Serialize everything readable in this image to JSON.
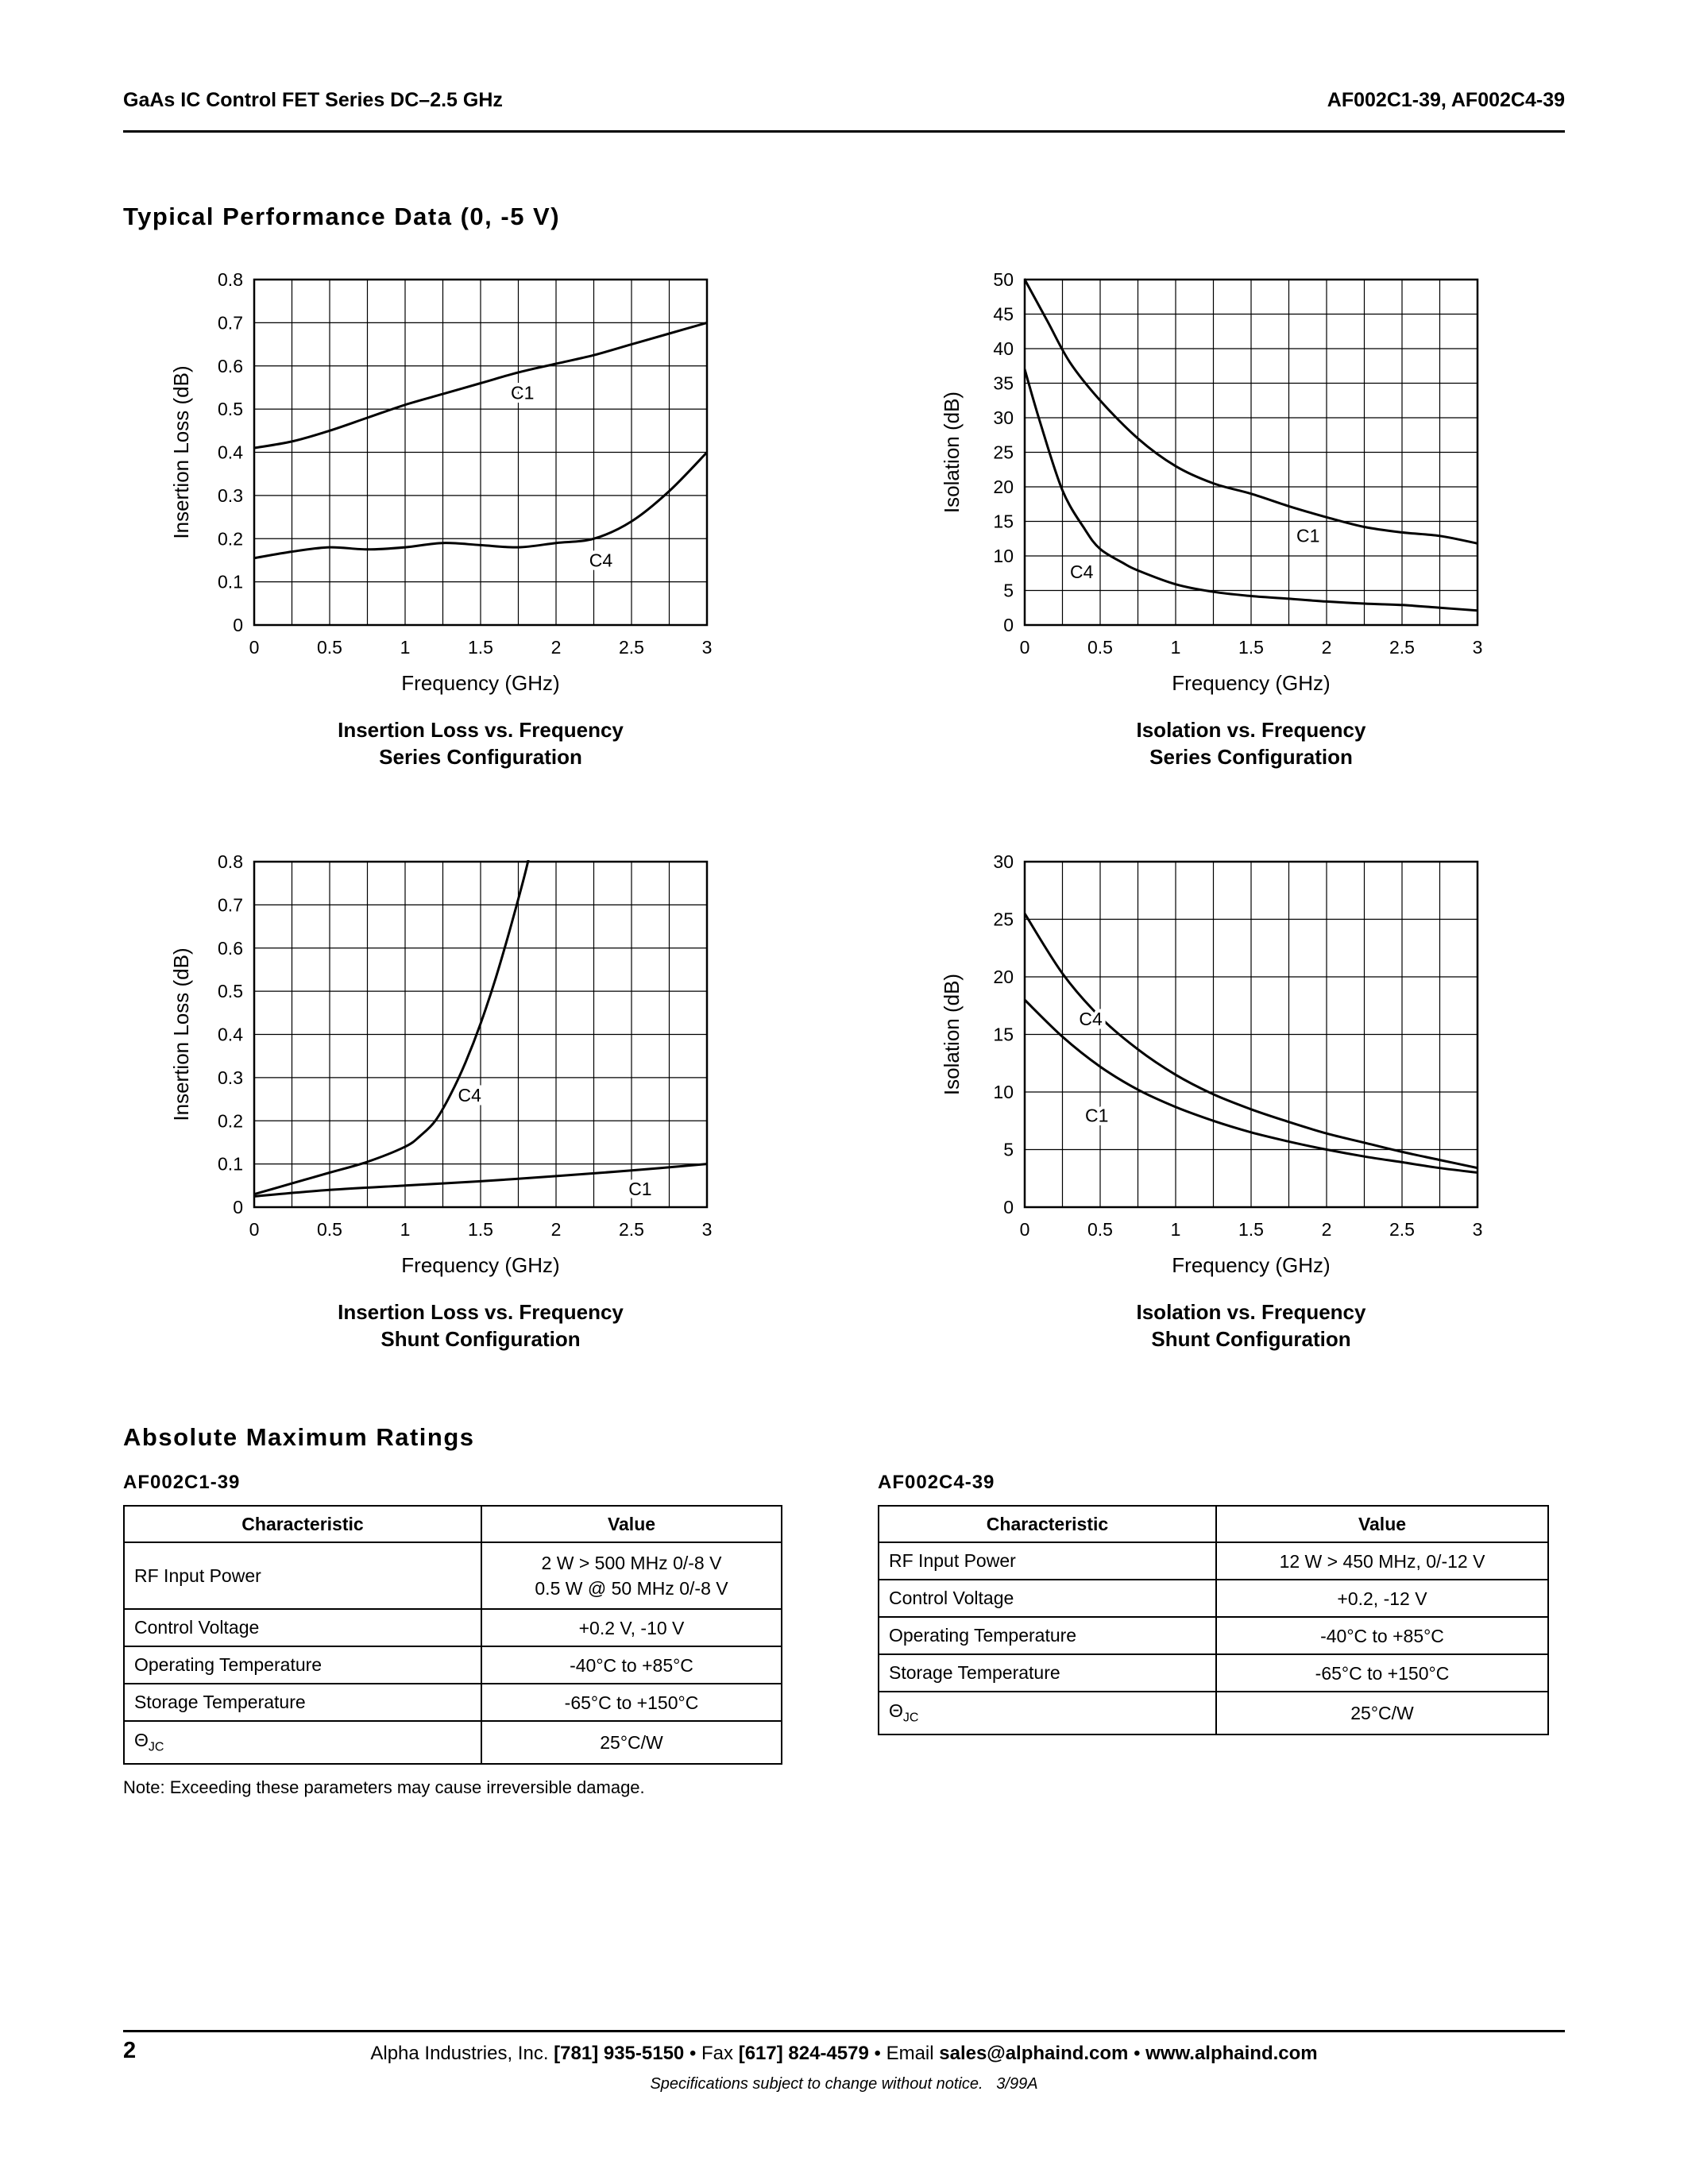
{
  "page": {
    "header_left": "GaAs IC Control FET Series DC–2.5 GHz",
    "header_right": "AF002C1-39, AF002C4-39",
    "page_number": "2"
  },
  "sections": {
    "performance": "Typical Performance Data (0, -5 V)",
    "ratings": "Absolute Maximum Ratings"
  },
  "chart_data": [
    {
      "id": "il-series",
      "type": "line",
      "title_line1": "Insertion Loss vs. Frequency",
      "title_line2": "Series Configuration",
      "xlabel": "Frequency (GHz)",
      "ylabel": "Insertion Loss (dB)",
      "xlim": [
        0,
        3
      ],
      "ylim": [
        0,
        0.8
      ],
      "x_grid_step": 0.25,
      "y_grid_step": 0.1,
      "x_ticks": [
        0,
        0.5,
        1,
        1.5,
        2,
        2.5,
        3
      ],
      "x_tick_labels": [
        "0",
        "0.5",
        "1",
        "1.5",
        "2",
        "2.5",
        "3"
      ],
      "y_ticks": [
        0,
        0.1,
        0.2,
        0.3,
        0.4,
        0.5,
        0.6,
        0.7,
        0.8
      ],
      "y_tick_labels": [
        "0",
        "0.1",
        "0.2",
        "0.3",
        "0.4",
        "0.5",
        "0.6",
        "0.7",
        "0.8"
      ],
      "series": [
        {
          "name": "C1",
          "label_x": 1.7,
          "label_y": 0.523,
          "points": [
            [
              0,
              0.41
            ],
            [
              0.25,
              0.425
            ],
            [
              0.5,
              0.45
            ],
            [
              0.75,
              0.48
            ],
            [
              1,
              0.51
            ],
            [
              1.25,
              0.535
            ],
            [
              1.5,
              0.56
            ],
            [
              1.75,
              0.585
            ],
            [
              2,
              0.605
            ],
            [
              2.25,
              0.625
            ],
            [
              2.5,
              0.65
            ],
            [
              2.75,
              0.675
            ],
            [
              3,
              0.7
            ]
          ]
        },
        {
          "name": "C4",
          "label_x": 2.22,
          "label_y": 0.135,
          "points": [
            [
              0,
              0.155
            ],
            [
              0.25,
              0.17
            ],
            [
              0.5,
              0.18
            ],
            [
              0.75,
              0.175
            ],
            [
              1,
              0.18
            ],
            [
              1.25,
              0.19
            ],
            [
              1.5,
              0.185
            ],
            [
              1.75,
              0.18
            ],
            [
              2,
              0.19
            ],
            [
              2.25,
              0.2
            ],
            [
              2.5,
              0.24
            ],
            [
              2.75,
              0.31
            ],
            [
              3,
              0.4
            ]
          ]
        }
      ]
    },
    {
      "id": "iso-series",
      "type": "line",
      "title_line1": "Isolation vs. Frequency",
      "title_line2": "Series Configuration",
      "xlabel": "Frequency (GHz)",
      "ylabel": "Isolation (dB)",
      "xlim": [
        0,
        3
      ],
      "ylim": [
        0,
        50
      ],
      "x_grid_step": 0.25,
      "y_grid_step": 5,
      "x_ticks": [
        0,
        0.5,
        1,
        1.5,
        2,
        2.5,
        3
      ],
      "x_tick_labels": [
        "0",
        "0.5",
        "1",
        "1.5",
        "2",
        "2.5",
        "3"
      ],
      "y_ticks": [
        0,
        5,
        10,
        15,
        20,
        25,
        30,
        35,
        40,
        45,
        50
      ],
      "y_tick_labels": [
        "0",
        "5",
        "10",
        "15",
        "20",
        "25",
        "30",
        "35",
        "40",
        "45",
        "50"
      ],
      "series": [
        {
          "name": "C1",
          "label_x": 1.8,
          "label_y": 12.0,
          "points": [
            [
              0,
              50
            ],
            [
              0.15,
              44
            ],
            [
              0.3,
              38
            ],
            [
              0.5,
              32.5
            ],
            [
              0.75,
              27
            ],
            [
              1,
              23
            ],
            [
              1.25,
              20.5
            ],
            [
              1.5,
              19
            ],
            [
              1.75,
              17.2
            ],
            [
              2,
              15.6
            ],
            [
              2.25,
              14.2
            ],
            [
              2.5,
              13.4
            ],
            [
              2.75,
              12.9
            ],
            [
              3,
              11.8
            ]
          ]
        },
        {
          "name": "C4",
          "label_x": 0.3,
          "label_y": 6.8,
          "points": [
            [
              0,
              37
            ],
            [
              0.1,
              29.5
            ],
            [
              0.25,
              19.5
            ],
            [
              0.4,
              13.8
            ],
            [
              0.5,
              11
            ],
            [
              0.65,
              9
            ],
            [
              0.75,
              7.9
            ],
            [
              1,
              5.9
            ],
            [
              1.25,
              4.8
            ],
            [
              1.5,
              4.2
            ],
            [
              1.75,
              3.8
            ],
            [
              2,
              3.4
            ],
            [
              2.25,
              3.1
            ],
            [
              2.5,
              2.9
            ],
            [
              2.75,
              2.5
            ],
            [
              3,
              2.1
            ]
          ]
        }
      ]
    },
    {
      "id": "il-shunt",
      "type": "line",
      "title_line1": "Insertion Loss vs. Frequency",
      "title_line2": "Shunt Configuration",
      "xlabel": "Frequency (GHz)",
      "ylabel": "Insertion Loss (dB)",
      "xlim": [
        0,
        3
      ],
      "ylim": [
        0,
        0.8
      ],
      "x_grid_step": 0.25,
      "y_grid_step": 0.1,
      "x_ticks": [
        0,
        0.5,
        1,
        1.5,
        2,
        2.5,
        3
      ],
      "x_tick_labels": [
        "0",
        "0.5",
        "1",
        "1.5",
        "2",
        "2.5",
        "3"
      ],
      "y_ticks": [
        0,
        0.1,
        0.2,
        0.3,
        0.4,
        0.5,
        0.6,
        0.7,
        0.8
      ],
      "y_tick_labels": [
        "0",
        "0.1",
        "0.2",
        "0.3",
        "0.4",
        "0.5",
        "0.6",
        "0.7",
        "0.8"
      ],
      "series": [
        {
          "name": "C4",
          "label_x": 1.35,
          "label_y": 0.245,
          "points": [
            [
              0,
              0.03
            ],
            [
              0.25,
              0.055
            ],
            [
              0.5,
              0.08
            ],
            [
              0.75,
              0.105
            ],
            [
              1,
              0.14
            ],
            [
              1.1,
              0.165
            ],
            [
              1.2,
              0.2
            ],
            [
              1.3,
              0.26
            ],
            [
              1.4,
              0.335
            ],
            [
              1.5,
              0.425
            ],
            [
              1.6,
              0.53
            ],
            [
              1.7,
              0.65
            ],
            [
              1.8,
              0.78
            ],
            [
              1.85,
              0.86
            ]
          ]
        },
        {
          "name": "C1",
          "label_x": 2.48,
          "label_y": 0.028,
          "points": [
            [
              0,
              0.025
            ],
            [
              0.5,
              0.04
            ],
            [
              1,
              0.05
            ],
            [
              1.5,
              0.06
            ],
            [
              2,
              0.072
            ],
            [
              2.5,
              0.085
            ],
            [
              3,
              0.1
            ]
          ]
        }
      ]
    },
    {
      "id": "iso-shunt",
      "type": "line",
      "title_line1": "Isolation vs. Frequency",
      "title_line2": "Shunt Configuration",
      "xlabel": "Frequency (GHz)",
      "ylabel": "Isolation (dB)",
      "xlim": [
        0,
        3
      ],
      "ylim": [
        0,
        30
      ],
      "x_grid_step": 0.25,
      "y_grid_step": 5,
      "x_ticks": [
        0,
        0.5,
        1,
        1.5,
        2,
        2.5,
        3
      ],
      "x_tick_labels": [
        "0",
        "0.5",
        "1",
        "1.5",
        "2",
        "2.5",
        "3"
      ],
      "y_ticks": [
        0,
        5,
        10,
        15,
        20,
        25,
        30
      ],
      "y_tick_labels": [
        "0",
        "5",
        "10",
        "15",
        "20",
        "25",
        "30"
      ],
      "series": [
        {
          "name": "C4",
          "label_x": 0.36,
          "label_y": 15.8,
          "points": [
            [
              0,
              25.5
            ],
            [
              0.25,
              20.3
            ],
            [
              0.5,
              16.5
            ],
            [
              0.75,
              13.7
            ],
            [
              1,
              11.5
            ],
            [
              1.25,
              9.8
            ],
            [
              1.5,
              8.5
            ],
            [
              1.75,
              7.4
            ],
            [
              2,
              6.4
            ],
            [
              2.25,
              5.6
            ],
            [
              2.5,
              4.8
            ],
            [
              2.75,
              4.1
            ],
            [
              3,
              3.4
            ]
          ]
        },
        {
          "name": "C1",
          "label_x": 0.4,
          "label_y": 7.4,
          "points": [
            [
              0,
              18
            ],
            [
              0.25,
              14.8
            ],
            [
              0.5,
              12.2
            ],
            [
              0.75,
              10.2
            ],
            [
              1,
              8.7
            ],
            [
              1.25,
              7.5
            ],
            [
              1.5,
              6.5
            ],
            [
              1.75,
              5.7
            ],
            [
              2,
              5.0
            ],
            [
              2.25,
              4.4
            ],
            [
              2.5,
              3.9
            ],
            [
              2.75,
              3.4
            ],
            [
              3,
              3.0
            ]
          ]
        }
      ]
    }
  ],
  "tables": [
    {
      "label": "AF002C1-39",
      "headers": [
        "Characteristic",
        "Value"
      ],
      "rows": [
        {
          "characteristic": "RF Input Power",
          "value_line1": "2 W > 500 MHz 0/-8 V",
          "value_line2": "0.5 W @ 50 MHz 0/-8 V"
        },
        {
          "characteristic": "Control Voltage",
          "value": "+0.2 V, -10 V"
        },
        {
          "characteristic": "Operating Temperature",
          "value": "-40°C to +85°C"
        },
        {
          "characteristic": "Storage Temperature",
          "value": "-65°C to +150°C"
        },
        {
          "characteristic_symbol": "Θ",
          "characteristic_subscript": "JC",
          "value": "25°C/W"
        }
      ],
      "note": "Note: Exceeding these parameters may cause irreversible damage."
    },
    {
      "label": "AF002C4-39",
      "headers": [
        "Characteristic",
        "Value"
      ],
      "rows": [
        {
          "characteristic": "RF Input Power",
          "value": "12 W > 450 MHz, 0/-12 V"
        },
        {
          "characteristic": "Control Voltage",
          "value": "+0.2, -12 V"
        },
        {
          "characteristic": "Operating Temperature",
          "value": "-40°C to +85°C"
        },
        {
          "characteristic": "Storage Temperature",
          "value": "-65°C to +150°C"
        },
        {
          "characteristic_symbol": "Θ",
          "characteristic_subscript": "JC",
          "value": "25°C/W"
        }
      ]
    }
  ],
  "footer": {
    "contact_segments": [
      {
        "text": "Alpha Industries, Inc. ",
        "bold": false
      },
      {
        "text": "[781] 935-5150",
        "bold": true
      },
      {
        "text": " • Fax ",
        "bold": false
      },
      {
        "text": "[617] 824-4579",
        "bold": true
      },
      {
        "text": " • Email ",
        "bold": false
      },
      {
        "text": "sales@alphaind.com",
        "bold": true
      },
      {
        "text": " • ",
        "bold": false
      },
      {
        "text": "www.alphaind.com",
        "bold": true
      }
    ],
    "disclaimer": "Specifications subject to change without notice.   3/99A"
  }
}
